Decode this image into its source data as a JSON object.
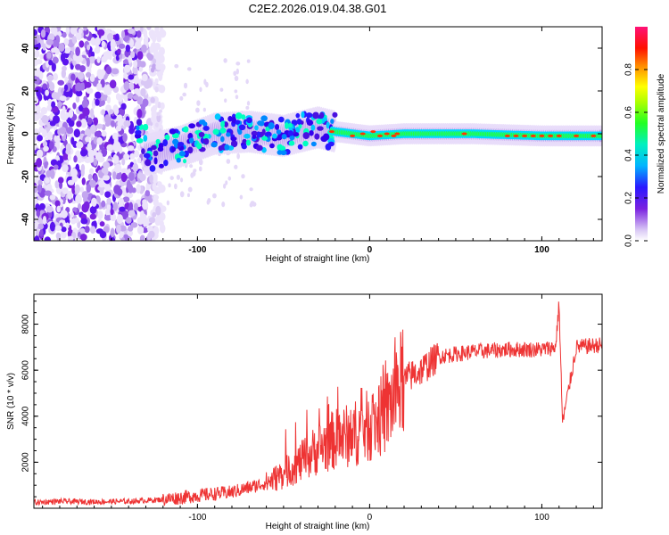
{
  "title": "C2E2.2026.019.04.38.G01",
  "chart_data": [
    {
      "type": "heatmap",
      "title": "C2E2.2026.019.04.38.G01",
      "xlabel": "Height of straight line (km)",
      "ylabel": "Frequency (Hz)",
      "xlim": [
        -195,
        135
      ],
      "ylim": [
        -50,
        50
      ],
      "xticks": [
        -100,
        0,
        100
      ],
      "xtick_labels": [
        "-100",
        "0",
        "100"
      ],
      "yticks": [
        -40,
        -20,
        0,
        20,
        40
      ],
      "ytick_labels": [
        "-40",
        "-20",
        "0",
        "20",
        "40"
      ],
      "colorbar": {
        "label": "Normalized spectral amplitude",
        "range": [
          0,
          1
        ],
        "ticks": [
          0.0,
          0.2,
          0.4,
          0.6,
          0.8
        ],
        "tick_labels": [
          "0.0",
          "0.2",
          "0.4",
          "0.6",
          "0.8"
        ]
      },
      "ridge": {
        "description_x": [
          -130,
          -110,
          -90,
          -70,
          -50,
          -30,
          -20,
          -10,
          0,
          20,
          60,
          100,
          135
        ],
        "freq": [
          -10,
          -6,
          0,
          1,
          -1,
          3,
          1,
          0,
          -1,
          0,
          0,
          -1,
          -1
        ]
      }
    },
    {
      "type": "line",
      "xlabel": "Height of straight line (km)",
      "ylabel": "SNR (10 * v/v)",
      "xlim": [
        -195,
        135
      ],
      "ylim": [
        0,
        9300
      ],
      "xticks": [
        -100,
        0,
        100
      ],
      "xtick_labels": [
        "-100",
        "0",
        "100"
      ],
      "yticks": [
        2000,
        4000,
        6000,
        8000
      ],
      "ytick_labels": [
        "2000",
        "4000",
        "6000",
        "8000"
      ],
      "series": [
        {
          "name": "SNR",
          "color": "#ee3333",
          "x": [
            -195,
            -180,
            -160,
            -140,
            -120,
            -100,
            -80,
            -60,
            -50,
            -40,
            -30,
            -20,
            -10,
            0,
            10,
            15,
            20,
            30,
            40,
            50,
            60,
            80,
            100,
            108,
            110,
            112,
            120,
            135
          ],
          "y": [
            250,
            300,
            280,
            300,
            380,
            550,
            700,
            1100,
            1500,
            2000,
            2600,
            3000,
            3200,
            3600,
            4200,
            5000,
            5600,
            6000,
            6600,
            6700,
            6800,
            6900,
            6900,
            7000,
            8900,
            3700,
            7000,
            7100
          ]
        }
      ]
    }
  ]
}
